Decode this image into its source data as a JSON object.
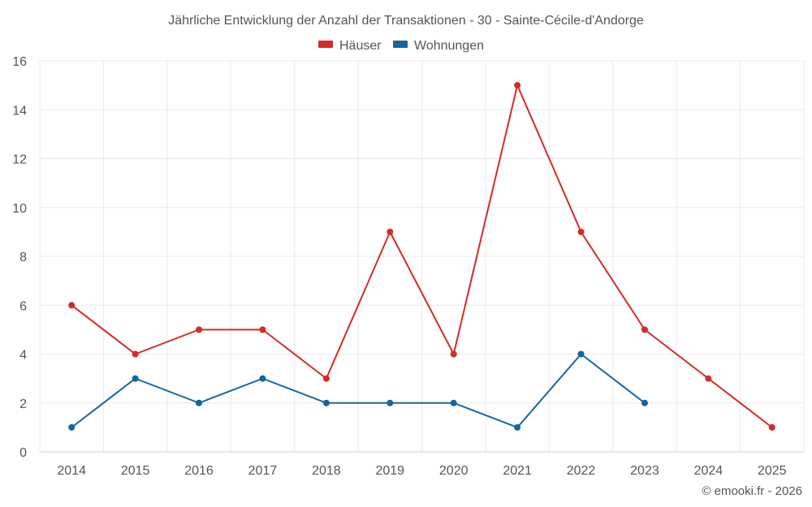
{
  "chart_data": {
    "type": "line",
    "title": "Jährliche Entwicklung der Anzahl der Transaktionen - 30 - Sainte-Cécile-d'Andorge",
    "categories": [
      "2014",
      "2015",
      "2016",
      "2017",
      "2018",
      "2019",
      "2020",
      "2021",
      "2022",
      "2023",
      "2024",
      "2025"
    ],
    "series": [
      {
        "name": "Häuser",
        "color": "#d32a2a",
        "values": [
          6,
          4,
          5,
          5,
          3,
          9,
          4,
          15,
          9,
          5,
          3,
          1
        ]
      },
      {
        "name": "Wohnungen",
        "color": "#1565a0",
        "values": [
          1,
          3,
          2,
          3,
          2,
          2,
          2,
          1,
          4,
          2,
          null,
          null
        ]
      }
    ],
    "ylim": [
      0,
      16
    ],
    "yticks": [
      "0",
      "2",
      "4",
      "6",
      "8",
      "10",
      "12",
      "14",
      "16"
    ],
    "grid": true,
    "legend_position": "top-center",
    "credit": "© emooki.fr - 2026"
  }
}
